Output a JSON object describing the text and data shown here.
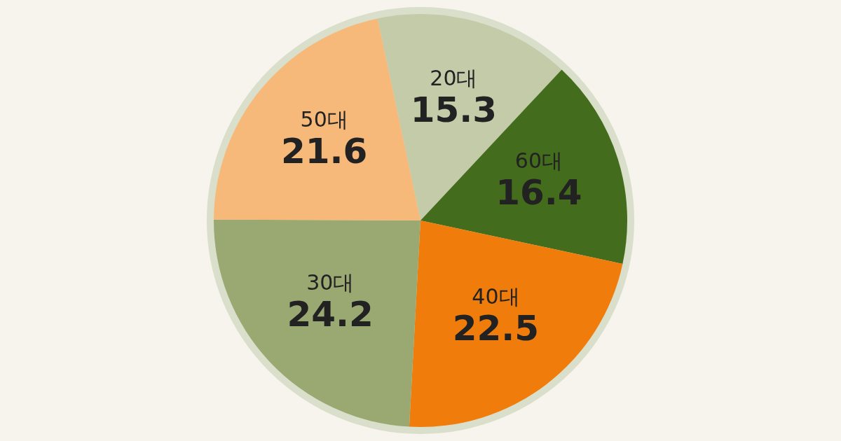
{
  "chart_data": {
    "type": "pie",
    "categories": [
      "20대",
      "60대",
      "40대",
      "30대",
      "50대"
    ],
    "values": [
      15.3,
      16.4,
      22.5,
      24.2,
      21.6
    ],
    "colors": [
      "#c3cba9",
      "#436d1c",
      "#f07c0c",
      "#9aa872",
      "#f7b97a"
    ],
    "data_labels": true
  }
}
